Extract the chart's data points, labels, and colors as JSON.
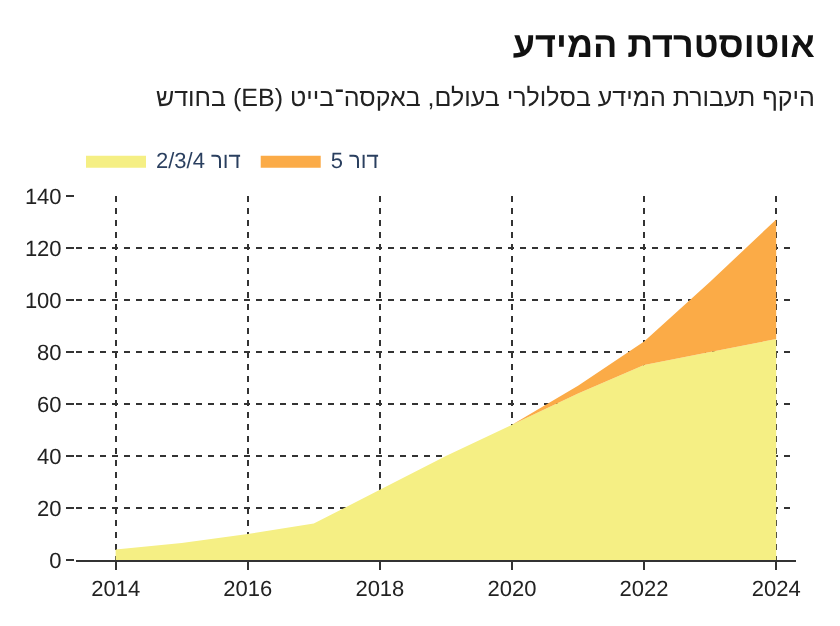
{
  "chart_data": {
    "type": "area",
    "stacked": true,
    "title": "אוטוסטרדת המידע",
    "subtitle": "היקף תעבורת המידע בסלולרי בעולם, באקסה־בייט (EB) בחודש",
    "x": [
      2014,
      2015,
      2016,
      2017,
      2018,
      2019,
      2020,
      2021,
      2022,
      2023,
      2024
    ],
    "series": [
      {
        "name": "דור 2/3/4",
        "color": "#f5ef84",
        "values": [
          4,
          6.5,
          10,
          14,
          27,
          40,
          52,
          64,
          75,
          80,
          85
        ]
      },
      {
        "name": "דור 5",
        "color": "#fbab47",
        "values": [
          0,
          0,
          0,
          0,
          0,
          0,
          0,
          3,
          9,
          27,
          46
        ]
      }
    ],
    "xlim": [
      2013.4,
      2024.3
    ],
    "xticks": [
      2014,
      2016,
      2018,
      2020,
      2022,
      2024
    ],
    "ylim": [
      0,
      140
    ],
    "yticks": [
      0,
      20,
      40,
      60,
      80,
      100,
      120,
      140
    ],
    "grid": true,
    "legend": "top left"
  }
}
